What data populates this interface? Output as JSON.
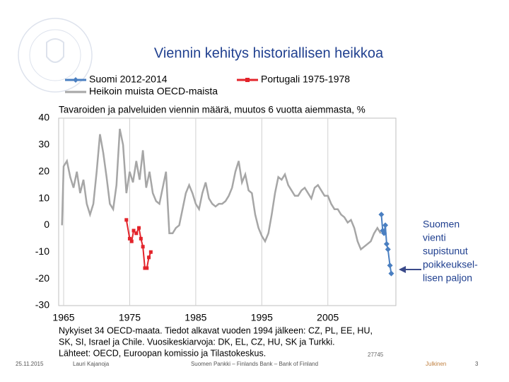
{
  "chart_data": {
    "type": "line",
    "title": "Viennin kehitys historiallisen heikkoa",
    "subtitle": "Tavaroiden ja palveluiden viennin määrä, muutos 6 vuotta aiemmasta, %",
    "xlim": [
      1964.25,
      2015.3
    ],
    "ylim": [
      -30,
      40
    ],
    "xticks": [
      1965,
      1975,
      1985,
      1995,
      2005
    ],
    "yticks": [
      -30,
      -20,
      -10,
      0,
      10,
      20,
      30,
      40
    ],
    "grid": "x",
    "series": [
      {
        "name": "Suomi 2012-2014",
        "color": "#4a7fc1",
        "marker": "diamond",
        "x": [
          2013.1,
          2013.3,
          2013.5,
          2013.7,
          2013.9,
          2014.1,
          2014.4,
          2014.6
        ],
        "values": [
          4,
          -2,
          -3,
          0,
          -7,
          -9,
          -15,
          -18
        ]
      },
      {
        "name": "Portugali 1975-1978",
        "color": "#e3242b",
        "marker": "square",
        "x": [
          1974.5,
          1975,
          1975.3,
          1975.6,
          1976,
          1976.4,
          1976.7,
          1977,
          1977.3,
          1977.6,
          1977.9,
          1978.2
        ],
        "values": [
          2,
          -5,
          -6,
          -2,
          -3,
          -1,
          -5,
          -8,
          -16,
          -16,
          -12,
          -10
        ]
      },
      {
        "name": "Heikoin muista OECD-maista",
        "color": "#a6a6a6",
        "marker": "none",
        "x": [
          1964.75,
          1965,
          1965.5,
          1966,
          1966.5,
          1967,
          1967.5,
          1968,
          1968.5,
          1969,
          1969.5,
          1970,
          1970.5,
          1971,
          1971.5,
          1972,
          1972.5,
          1973,
          1973.5,
          1974,
          1974.5,
          1975,
          1975.5,
          1976,
          1976.5,
          1977,
          1977.5,
          1978,
          1978.5,
          1979,
          1979.5,
          1980,
          1980.5,
          1981,
          1981.5,
          1982,
          1982.5,
          1983,
          1983.5,
          1984,
          1984.5,
          1985,
          1985.5,
          1986,
          1986.5,
          1987,
          1987.5,
          1988,
          1988.5,
          1989,
          1989.5,
          1990,
          1990.5,
          1991,
          1991.5,
          1992,
          1992.5,
          1993,
          1993.5,
          1994,
          1994.5,
          1995,
          1995.5,
          1996,
          1996.5,
          1997,
          1997.5,
          1998,
          1998.5,
          1999,
          1999.5,
          2000,
          2000.5,
          2001,
          2001.5,
          2002,
          2002.5,
          2003,
          2003.5,
          2004,
          2004.5,
          2005,
          2005.5,
          2006,
          2006.5,
          2007,
          2007.5,
          2008,
          2008.5,
          2009,
          2009.5,
          2010,
          2010.5,
          2011,
          2011.5,
          2012,
          2012.5,
          2013
        ],
        "values": [
          0,
          22,
          24,
          18,
          14,
          20,
          12,
          17,
          8,
          4,
          8,
          20,
          34,
          27,
          18,
          8,
          6,
          15,
          36,
          30,
          12,
          20,
          16,
          24,
          17,
          28,
          14,
          20,
          12,
          9,
          8,
          14,
          20,
          -3,
          -3,
          -1,
          0,
          6,
          12,
          15,
          12,
          8,
          6,
          12,
          16,
          10,
          8,
          7,
          8,
          8,
          9,
          11,
          14,
          20,
          24,
          16,
          19,
          13,
          12,
          4,
          -1,
          -4,
          -6,
          -3,
          4,
          12,
          18,
          17,
          19,
          15,
          13,
          11,
          11,
          13,
          14,
          12,
          10,
          14,
          15,
          13,
          11,
          11,
          8,
          6,
          6,
          4,
          3,
          1,
          2,
          -1,
          -6,
          -9,
          -8,
          -7,
          -6,
          -3,
          -1,
          -3
        ]
      }
    ]
  },
  "annotation": [
    "Suomen",
    "vienti",
    "supistunut",
    "poikkeuksel-",
    "lisen paljon"
  ],
  "notes": [
    "Nykyiset 34 OECD-maata. Tiedot alkavat vuoden 1994 jälkeen: CZ, PL, EE, HU,",
    "SK, SI, Israel ja Chile. Vuosikeskiarvoja: DK, EL, CZ, HU, SK ja Turkki.",
    "Lähteet: OECD, Euroopan komissio ja Tilastokeskus."
  ],
  "code": "27745",
  "footer": {
    "date": "25.11.2015",
    "author": "Lauri Kajanoja",
    "org": "Suomen Pankki – Finlands Bank – Bank of Finland",
    "class": "Julkinen",
    "page": "3"
  }
}
